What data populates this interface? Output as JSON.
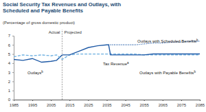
{
  "chart_data": {
    "type": "line",
    "title": "Social Security Tax Revenues and Outlays, with Scheduled and Payable Benefits",
    "subtitle": "(Percentage of gross domestic product)",
    "annotations": [
      "Actual",
      "Projected"
    ],
    "projection_start": 2011,
    "x": [
      1985,
      1990,
      1995,
      2000,
      2005,
      2008,
      2011,
      2015,
      2020,
      2025,
      2030,
      2035,
      2036,
      2037,
      2040,
      2045,
      2050,
      2055,
      2060,
      2065,
      2070,
      2075,
      2080,
      2085
    ],
    "xlim": [
      1985,
      2085
    ],
    "xticks": [
      1985,
      1995,
      2005,
      2015,
      2025,
      2035,
      2045,
      2055,
      2065,
      2075,
      2085
    ],
    "ylim": [
      0,
      7
    ],
    "yticks": [
      0,
      1,
      2,
      3,
      4,
      5,
      6,
      7
    ],
    "grid": false,
    "series": [
      {
        "name": "Outlays",
        "note": "b",
        "color": "#1f5aa6",
        "line_style": "solid",
        "values": [
          4.4,
          4.3,
          4.5,
          4.1,
          4.2,
          4.3,
          4.9,
          null,
          null,
          null,
          null,
          null,
          null,
          null,
          null,
          null,
          null,
          null,
          null,
          null,
          null,
          null,
          null,
          null
        ]
      },
      {
        "name": "Tax Revenue",
        "note": "a",
        "color": "#6aaee0",
        "line_style": "dashed",
        "values": [
          4.7,
          4.9,
          4.8,
          4.9,
          4.8,
          4.9,
          4.4,
          4.9,
          5.0,
          5.0,
          5.0,
          5.0,
          5.0,
          5.0,
          5.0,
          5.0,
          5.0,
          4.9,
          4.9,
          4.9,
          4.9,
          4.9,
          4.9,
          4.9
        ]
      },
      {
        "name": "Outlays with Scheduled Benefits",
        "note": "b",
        "color": "#1f5aa6",
        "line_style": "dotted",
        "values": [
          null,
          null,
          null,
          null,
          null,
          null,
          null,
          null,
          null,
          null,
          null,
          null,
          6.0,
          6.0,
          6.0,
          6.0,
          6.0,
          6.1,
          6.2,
          6.2,
          6.3,
          6.3,
          6.4,
          6.4
        ]
      },
      {
        "name": "Outlays with Payable Benefits",
        "note": "b",
        "color": "#1f5aa6",
        "line_style": "solid",
        "values": [
          null,
          null,
          null,
          null,
          null,
          null,
          4.9,
          4.9,
          5.3,
          5.7,
          5.9,
          6.0,
          6.0,
          4.9,
          4.9,
          4.9,
          4.9,
          4.9,
          5.0,
          5.0,
          5.0,
          5.0,
          5.0,
          5.0
        ]
      }
    ]
  }
}
